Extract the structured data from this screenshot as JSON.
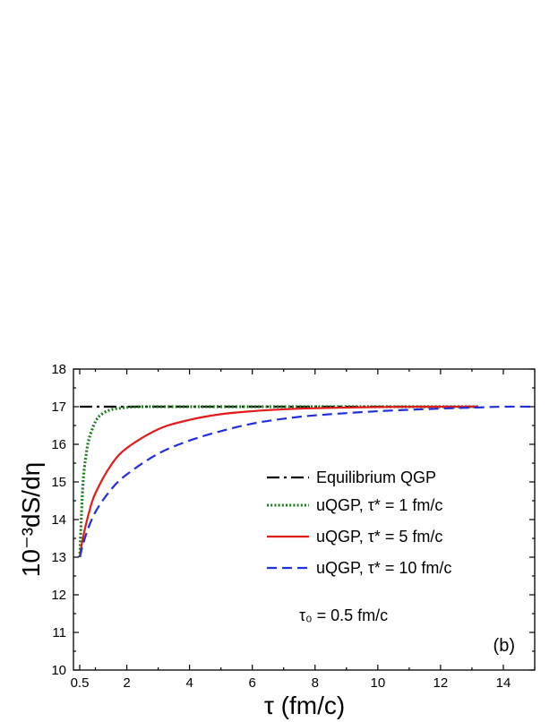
{
  "chart_data": {
    "type": "line",
    "panel_label": "(b)",
    "xlabel": "τ (fm/c)",
    "ylabel": "10⁻³dS/dη",
    "xlim": [
      0.3,
      15
    ],
    "ylim": [
      10,
      18
    ],
    "x_ticks": [
      0.5,
      2,
      4,
      6,
      8,
      10,
      12,
      14
    ],
    "x_tick_labels": [
      "0.5",
      "2",
      "4",
      "6",
      "8",
      "10",
      "12",
      "14"
    ],
    "y_ticks": [
      10,
      11,
      12,
      13,
      14,
      15,
      16,
      17,
      18
    ],
    "y_tick_labels": [
      "10",
      "11",
      "12",
      "13",
      "14",
      "15",
      "16",
      "17",
      "18"
    ],
    "annotation": "τ₀ = 0.5 fm/c",
    "legend_position": "middle-right",
    "series": [
      {
        "name": "Equilibrium QGP",
        "color": "#000000",
        "style": "dash-dot",
        "x": [
          0.5,
          1,
          2,
          4,
          6,
          8,
          10,
          12,
          13.2
        ],
        "y": [
          17.0,
          17.0,
          17.0,
          17.0,
          17.0,
          17.0,
          17.0,
          17.0,
          17.0
        ]
      },
      {
        "name": "uQGP, τ* = 1 fm/c",
        "color": "#1a7f1a",
        "style": "dotted",
        "x": [
          0.5,
          0.6,
          0.7,
          0.8,
          1.0,
          1.2,
          1.5,
          2.0,
          2.5,
          3,
          4,
          6,
          8,
          10,
          12,
          13.2
        ],
        "y": [
          13.0,
          14.9,
          15.7,
          16.15,
          16.6,
          16.8,
          16.92,
          16.98,
          17.0,
          17.0,
          17.0,
          17.0,
          17.0,
          17.0,
          17.0,
          17.0
        ]
      },
      {
        "name": "uQGP, τ* = 5 fm/c",
        "color": "#e31a1a",
        "style": "solid",
        "x": [
          0.5,
          0.6,
          0.8,
          1.0,
          1.5,
          2.0,
          3.0,
          4.0,
          5.0,
          6.0,
          7.0,
          8.0,
          10.0,
          12.0,
          13.2
        ],
        "y": [
          13.0,
          13.5,
          14.2,
          14.7,
          15.45,
          15.9,
          16.4,
          16.65,
          16.8,
          16.88,
          16.93,
          16.96,
          16.99,
          17.0,
          17.0
        ]
      },
      {
        "name": "uQGP, τ* = 10 fm/c",
        "color": "#1f2fdc",
        "style": "dashed",
        "x": [
          0.5,
          0.7,
          1.0,
          1.5,
          2.0,
          3.0,
          4.0,
          5.0,
          6.0,
          7.0,
          8.0,
          10.0,
          12.0,
          13.2,
          14.0,
          15.0
        ],
        "y": [
          13.0,
          13.6,
          14.2,
          14.8,
          15.2,
          15.75,
          16.1,
          16.35,
          16.55,
          16.68,
          16.77,
          16.88,
          16.95,
          16.98,
          17.0,
          17.0
        ]
      }
    ]
  }
}
